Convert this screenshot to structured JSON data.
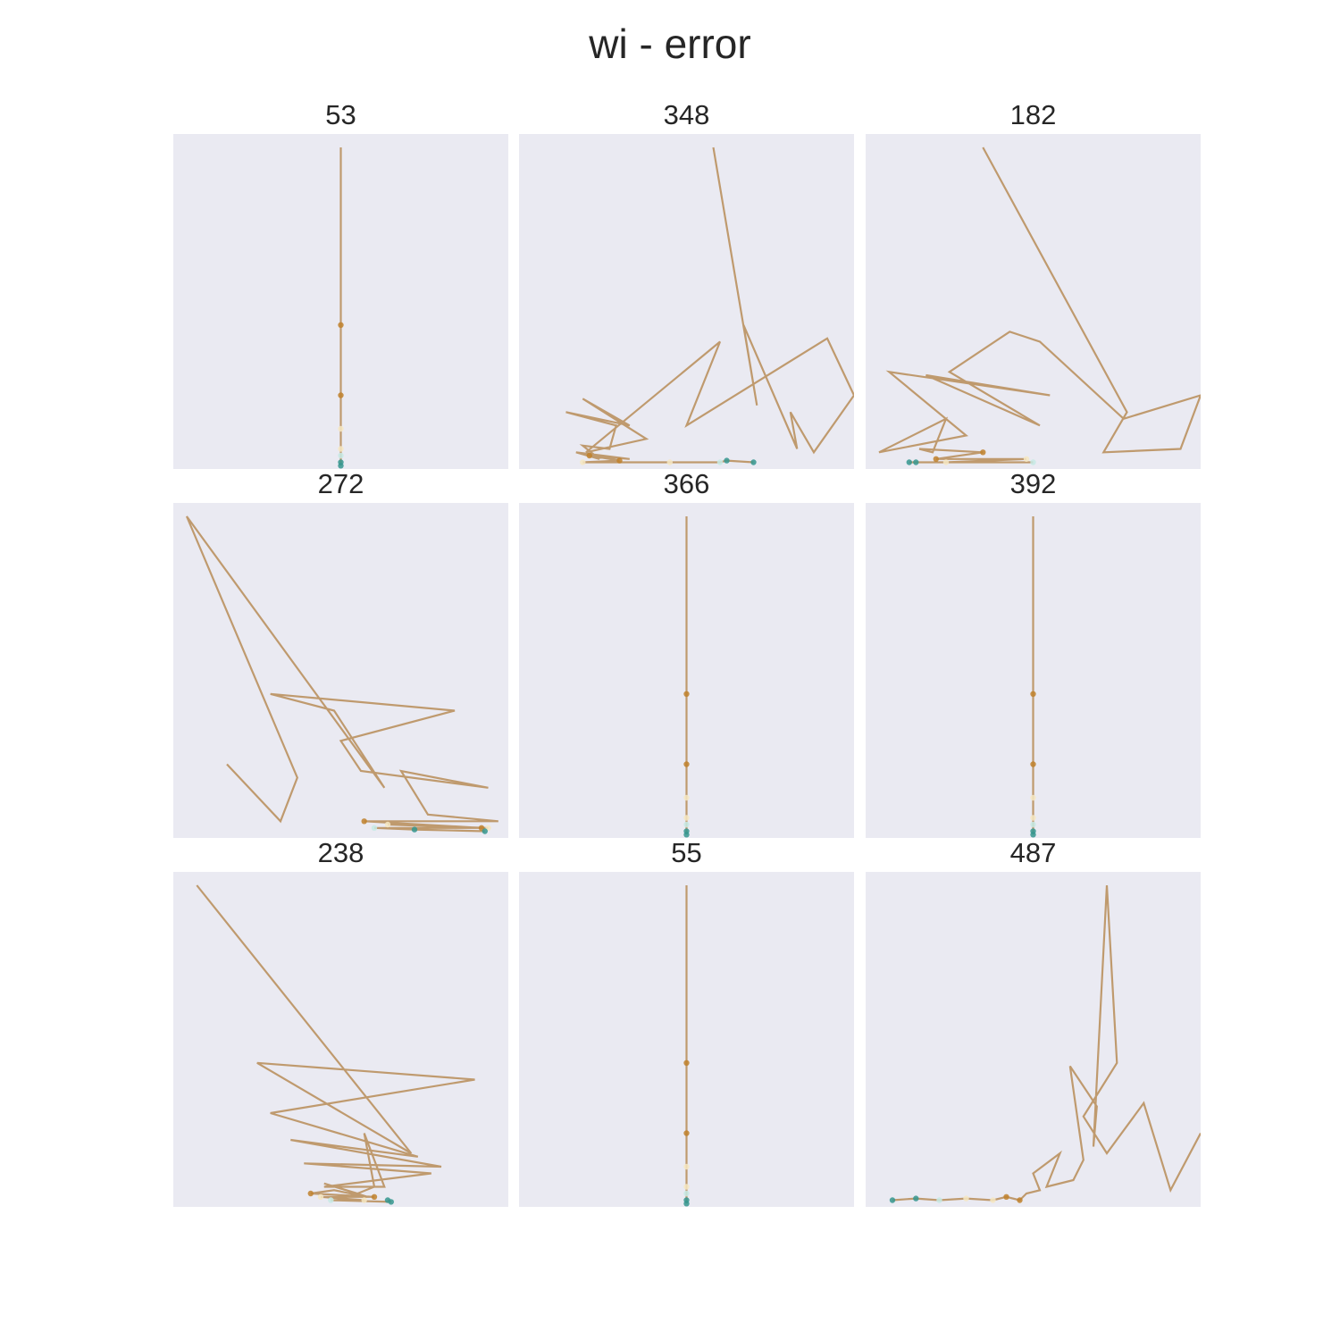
{
  "title": "wi - error",
  "colors": {
    "axes_background": "#eaeaf2",
    "line": "#bf9a6e",
    "trail_early": "#bf812d",
    "trail_mid": "#f6e8c3",
    "trail_light": "#c7eae5",
    "trail_end": "#35978f"
  },
  "chart_data": [
    {
      "type": "line",
      "title": "53",
      "grid": false,
      "axes_visible": false,
      "x": [
        0.5,
        0.5,
        0.5,
        0.5,
        0.5,
        0.5,
        0.5,
        0.5
      ],
      "y": [
        0.96,
        0.43,
        0.22,
        0.12,
        0.06,
        0.04,
        0.02,
        0.01
      ]
    },
    {
      "type": "line",
      "title": "348",
      "grid": false,
      "axes_visible": false,
      "x": [
        0.58,
        0.71,
        0.67,
        0.83,
        0.81,
        0.88,
        1.0,
        0.92,
        0.5,
        0.6,
        0.2,
        0.38,
        0.19,
        0.33,
        0.14,
        0.29,
        0.27,
        0.19,
        0.24,
        0.17,
        0.33,
        0.21,
        0.3,
        0.19,
        0.45,
        0.6,
        0.62,
        0.7
      ],
      "y": [
        0.96,
        0.19,
        0.43,
        0.06,
        0.17,
        0.05,
        0.22,
        0.39,
        0.13,
        0.38,
        0.05,
        0.09,
        0.21,
        0.13,
        0.17,
        0.13,
        0.06,
        0.07,
        0.03,
        0.05,
        0.03,
        0.04,
        0.025,
        0.02,
        0.02,
        0.02,
        0.025,
        0.02
      ]
    },
    {
      "type": "line",
      "title": "182",
      "grid": false,
      "axes_visible": false,
      "x": [
        0.35,
        0.78,
        0.71,
        0.94,
        1.0,
        0.77,
        0.52,
        0.43,
        0.25,
        0.52,
        0.18,
        0.55,
        0.07,
        0.3,
        0.04,
        0.24,
        0.2,
        0.16,
        0.35,
        0.21,
        0.48,
        0.24,
        0.5,
        0.13,
        0.15
      ],
      "y": [
        0.96,
        0.17,
        0.05,
        0.06,
        0.22,
        0.15,
        0.38,
        0.41,
        0.29,
        0.13,
        0.28,
        0.22,
        0.29,
        0.1,
        0.05,
        0.15,
        0.05,
        0.06,
        0.05,
        0.03,
        0.03,
        0.02,
        0.02,
        0.02,
        0.02
      ]
    },
    {
      "type": "line",
      "title": "272",
      "grid": false,
      "axes_visible": false,
      "x": [
        0.16,
        0.32,
        0.37,
        0.04,
        0.63,
        0.48,
        0.29,
        0.84,
        0.5,
        0.56,
        0.94,
        0.68,
        0.76,
        0.97,
        0.57,
        0.92,
        0.64,
        0.94,
        0.6,
        0.72,
        0.93
      ],
      "y": [
        0.22,
        0.05,
        0.18,
        0.96,
        0.15,
        0.38,
        0.43,
        0.38,
        0.29,
        0.2,
        0.15,
        0.2,
        0.07,
        0.05,
        0.05,
        0.03,
        0.04,
        0.03,
        0.03,
        0.025,
        0.02
      ]
    },
    {
      "type": "line",
      "title": "366",
      "grid": false,
      "axes_visible": false,
      "x": [
        0.5,
        0.5,
        0.5,
        0.5,
        0.5,
        0.5,
        0.5,
        0.5
      ],
      "y": [
        0.96,
        0.43,
        0.22,
        0.12,
        0.06,
        0.04,
        0.02,
        0.01
      ]
    },
    {
      "type": "line",
      "title": "392",
      "grid": false,
      "axes_visible": false,
      "x": [
        0.5,
        0.5,
        0.5,
        0.5,
        0.5,
        0.5,
        0.5,
        0.5
      ],
      "y": [
        0.96,
        0.43,
        0.22,
        0.12,
        0.06,
        0.04,
        0.02,
        0.01
      ]
    },
    {
      "type": "line",
      "title": "238",
      "grid": false,
      "axes_visible": false,
      "x": [
        0.07,
        0.71,
        0.25,
        0.9,
        0.29,
        0.73,
        0.35,
        0.8,
        0.39,
        0.77,
        0.45,
        0.63,
        0.57,
        0.6,
        0.55,
        0.45,
        0.58,
        0.48,
        0.41,
        0.6,
        0.44,
        0.57,
        0.47,
        0.65,
        0.64
      ],
      "y": [
        0.96,
        0.16,
        0.43,
        0.38,
        0.28,
        0.15,
        0.2,
        0.12,
        0.13,
        0.1,
        0.06,
        0.06,
        0.22,
        0.06,
        0.04,
        0.07,
        0.03,
        0.05,
        0.04,
        0.03,
        0.03,
        0.02,
        0.02,
        0.015,
        0.02
      ]
    },
    {
      "type": "line",
      "title": "55",
      "grid": false,
      "axes_visible": false,
      "x": [
        0.5,
        0.5,
        0.5,
        0.5,
        0.5,
        0.5,
        0.5,
        0.5
      ],
      "y": [
        0.96,
        0.43,
        0.22,
        0.12,
        0.06,
        0.04,
        0.02,
        0.01
      ]
    },
    {
      "type": "line",
      "title": "487",
      "grid": false,
      "axes_visible": false,
      "x": [
        1.0,
        0.91,
        0.83,
        0.72,
        0.65,
        0.75,
        0.72,
        0.68,
        0.69,
        0.61,
        0.65,
        0.62,
        0.54,
        0.58,
        0.5,
        0.52,
        0.48,
        0.46,
        0.42,
        0.38,
        0.3,
        0.22,
        0.15,
        0.08
      ],
      "y": [
        0.22,
        0.05,
        0.31,
        0.16,
        0.27,
        0.43,
        0.96,
        0.18,
        0.3,
        0.42,
        0.14,
        0.08,
        0.06,
        0.16,
        0.1,
        0.05,
        0.04,
        0.02,
        0.03,
        0.02,
        0.025,
        0.02,
        0.025,
        0.02
      ]
    }
  ]
}
